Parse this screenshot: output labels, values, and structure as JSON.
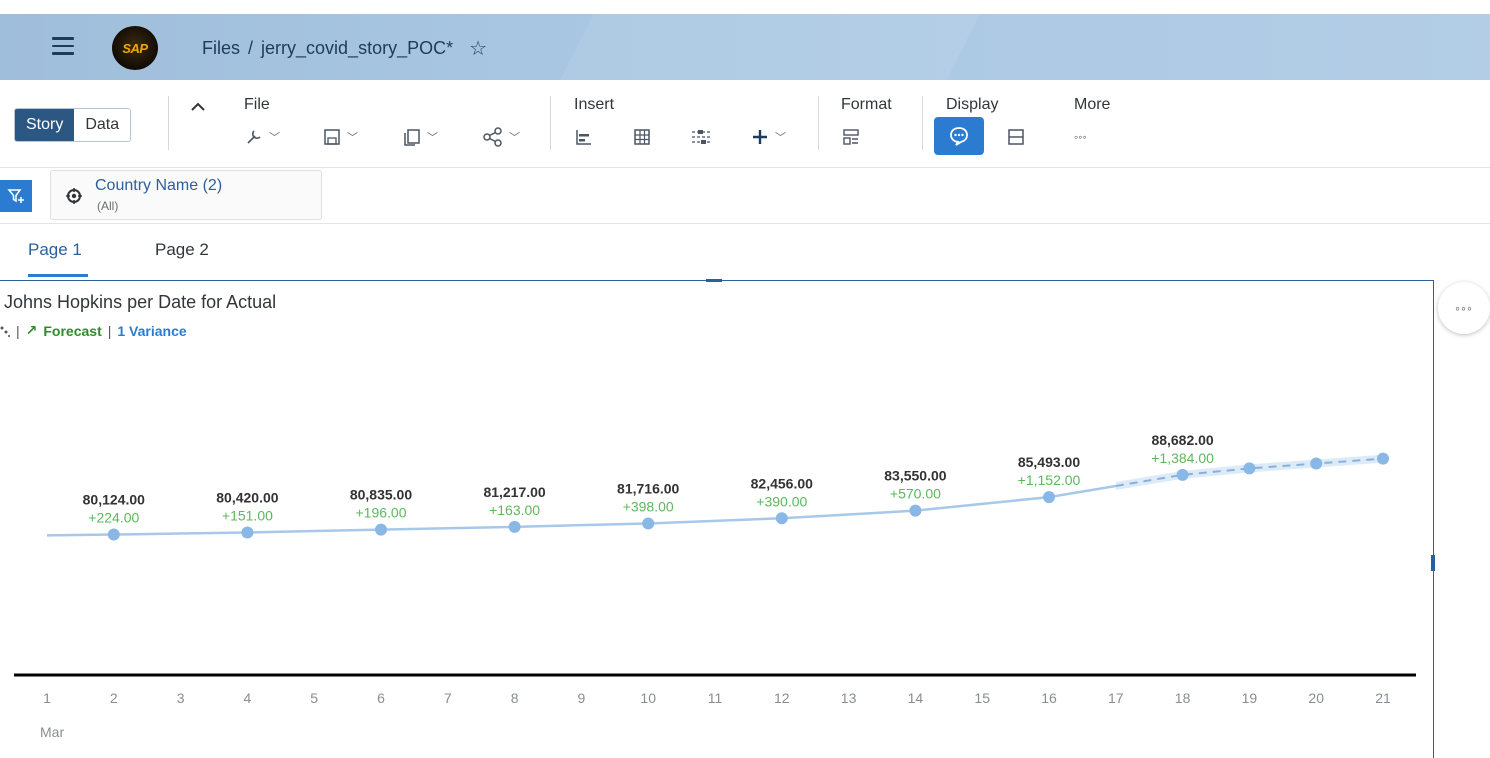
{
  "shell": {
    "logo_text": "SAP",
    "breadcrumb": {
      "root": "Files",
      "separator": "/",
      "current": "jerry_covid_story_POC*"
    }
  },
  "toolbar": {
    "story_label": "Story",
    "data_label": "Data",
    "groups": {
      "file": "File",
      "insert": "Insert",
      "format": "Format",
      "display": "Display",
      "more": "More"
    },
    "more_dots": "◦◦◦"
  },
  "filter": {
    "title": "Country Name (2)",
    "sub": "(All)"
  },
  "tabs": [
    {
      "label": "Page 1"
    },
    {
      "label": "Page 2"
    }
  ],
  "chart_more": "◦◦◦",
  "chart_data": {
    "type": "line",
    "title": "Johns Hopkins per Date for Actual",
    "subtitle": {
      "forecast": "Forecast",
      "variance": "1 Variance",
      "forecast_arrow": "↗"
    },
    "x": [
      1,
      2,
      3,
      4,
      5,
      6,
      7,
      8,
      9,
      10,
      11,
      12,
      13,
      14,
      15,
      16,
      17,
      18,
      19,
      20,
      21
    ],
    "x_sublabel": "Mar",
    "series": [
      {
        "values": [
          80000,
          80124,
          80272,
          80420,
          80627,
          80835,
          81026,
          81217,
          81466,
          81716,
          82086,
          82456,
          83003,
          83550,
          84521,
          85493,
          87087,
          88682,
          89600,
          90300,
          91000
        ],
        "forecast_from_x": 17
      }
    ],
    "labels": [
      {
        "x": 2,
        "value": "80,124.00",
        "variance": "+224.00"
      },
      {
        "x": 4,
        "value": "80,420.00",
        "variance": "+151.00"
      },
      {
        "x": 6,
        "value": "80,835.00",
        "variance": "+196.00"
      },
      {
        "x": 8,
        "value": "81,217.00",
        "variance": "+163.00"
      },
      {
        "x": 10,
        "value": "81,716.00",
        "variance": "+398.00"
      },
      {
        "x": 12,
        "value": "82,456.00",
        "variance": "+390.00"
      },
      {
        "x": 14,
        "value": "83,550.00",
        "variance": "+570.00"
      },
      {
        "x": 16,
        "value": "85,493.00",
        "variance": "+1,152.00"
      },
      {
        "x": 18,
        "value": "88,682.00",
        "variance": "+1,384.00"
      }
    ],
    "markers_at": [
      2,
      4,
      6,
      8,
      10,
      12,
      14,
      16,
      18,
      19,
      20,
      21
    ],
    "ylim": [
      0,
      95000
    ],
    "colors": {
      "line": "#a8c8ea",
      "marker": "#8ab8e6",
      "value": "#333333",
      "variance": "#5cb85c",
      "axis": "#000000",
      "band": "#cfe2f6"
    }
  }
}
